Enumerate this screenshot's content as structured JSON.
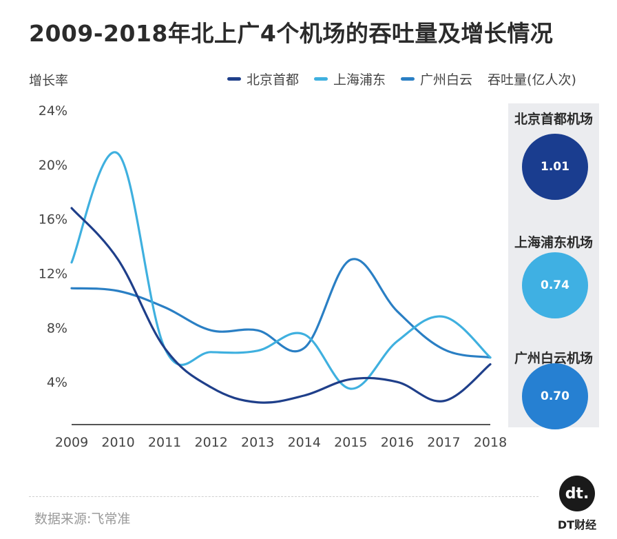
{
  "title": "2009-2018年北上广4个机场的吞吐量及增长情况",
  "ylabel": "增长率",
  "unit_label": "吞吐量(亿人次)",
  "source": "数据来源:飞常准",
  "brand": {
    "logo": "dt.",
    "name": "DT财经"
  },
  "colors": {
    "beijing": "#1f3f8a",
    "shanghai": "#3fb0df",
    "guangzhou": "#2a7fc4"
  },
  "airports": [
    {
      "label": "北京首都机场",
      "value": "1.01",
      "color": "#1a3d8f"
    },
    {
      "label": "上海浦东机场",
      "value": "0.74",
      "color": "#3fb0e3"
    },
    {
      "label": "广州白云机场",
      "value": "0.70",
      "color": "#2680d2"
    }
  ],
  "chart_data": {
    "type": "line",
    "title": "2009-2018年北上广4个机场的吞吐量及增长情况",
    "ylabel": "增长率",
    "xlabel": "",
    "categories": [
      "2009",
      "2010",
      "2011",
      "2012",
      "2013",
      "2014",
      "2015",
      "2016",
      "2017",
      "2018"
    ],
    "yticks": [
      "4%",
      "8%",
      "12%",
      "16%",
      "20%",
      "24%"
    ],
    "ylim": [
      0,
      24
    ],
    "grid": false,
    "legend_position": "top",
    "series": [
      {
        "name": "北京首都",
        "color": "#1f3f8a",
        "values": [
          16.8,
          13.0,
          6.5,
          3.6,
          2.5,
          3.0,
          4.2,
          4.0,
          2.6,
          5.3
        ]
      },
      {
        "name": "上海浦东",
        "color": "#3fb0df",
        "values": [
          12.8,
          20.8,
          6.5,
          6.2,
          6.3,
          7.5,
          3.5,
          7.0,
          8.8,
          5.8
        ]
      },
      {
        "name": "广州白云",
        "color": "#2a7fc4",
        "values": [
          10.9,
          10.7,
          9.5,
          7.8,
          7.8,
          6.5,
          13.0,
          9.2,
          6.4,
          5.8
        ]
      }
    ]
  }
}
